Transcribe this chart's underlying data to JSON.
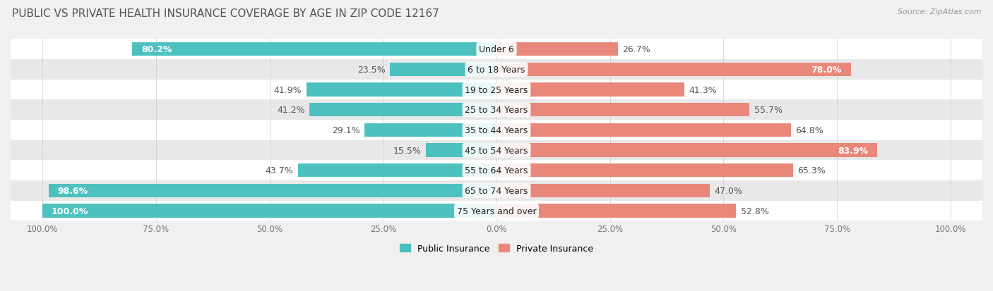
{
  "title": "PUBLIC VS PRIVATE HEALTH INSURANCE COVERAGE BY AGE IN ZIP CODE 12167",
  "source": "Source: ZipAtlas.com",
  "categories": [
    "Under 6",
    "6 to 18 Years",
    "19 to 25 Years",
    "25 to 34 Years",
    "35 to 44 Years",
    "45 to 54 Years",
    "55 to 64 Years",
    "65 to 74 Years",
    "75 Years and over"
  ],
  "public_values": [
    80.2,
    23.5,
    41.9,
    41.2,
    29.1,
    15.5,
    43.7,
    98.6,
    100.0
  ],
  "private_values": [
    26.7,
    78.0,
    41.3,
    55.7,
    64.8,
    83.9,
    65.3,
    47.0,
    52.8
  ],
  "public_color": "#4dc0c0",
  "private_color": "#e8877a",
  "private_color_light": "#f0a89e",
  "bar_height": 0.68,
  "bg_color": "#f0f0f0",
  "row_colors": [
    "#ffffff",
    "#e8e8e8"
  ],
  "legend_labels": [
    "Public Insurance",
    "Private Insurance"
  ],
  "title_fontsize": 11,
  "label_fontsize": 9,
  "tick_fontsize": 8.5,
  "source_fontsize": 8
}
